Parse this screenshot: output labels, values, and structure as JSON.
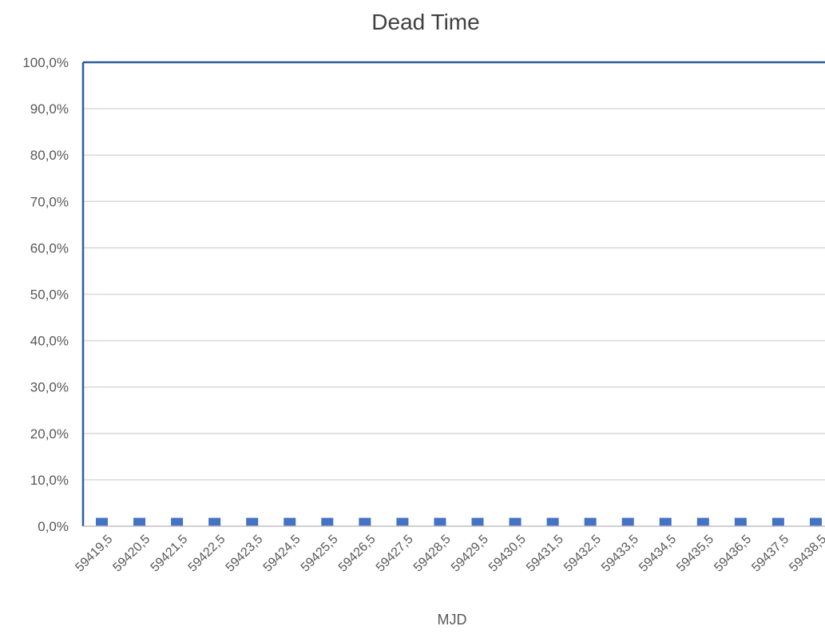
{
  "chart_data": {
    "type": "bar",
    "title": "Dead Time",
    "xlabel": "MJD",
    "ylabel": "",
    "categories": [
      "59419,5",
      "59420,5",
      "59421,5",
      "59422,5",
      "59423,5",
      "59424,5",
      "59425,5",
      "59426,5",
      "59427,5",
      "59428,5",
      "59429,5",
      "59430,5",
      "59431,5",
      "59432,5",
      "59433,5",
      "59434,5",
      "59435,5",
      "59436,5",
      "59437,5",
      "59438,5"
    ],
    "series": [
      {
        "values": [
          1.8,
          1.8,
          1.8,
          1.8,
          1.8,
          1.8,
          1.8,
          1.8,
          1.8,
          1.8,
          1.8,
          1.8,
          1.8,
          1.8,
          1.8,
          1.8,
          1.8,
          1.8,
          1.8,
          1.8
        ]
      }
    ],
    "ylim": [
      0,
      100
    ],
    "yticks": [
      "0,0%",
      "10,0%",
      "20,0%",
      "30,0%",
      "40,0%",
      "50,0%",
      "60,0%",
      "70,0%",
      "80,0%",
      "90,0%",
      "100,0%"
    ],
    "grid": true,
    "legend": "none",
    "colors": {
      "bar": "#4472c4",
      "axis": "#2e5d9a",
      "grid": "#d9d9d9",
      "text": "#595959"
    }
  }
}
